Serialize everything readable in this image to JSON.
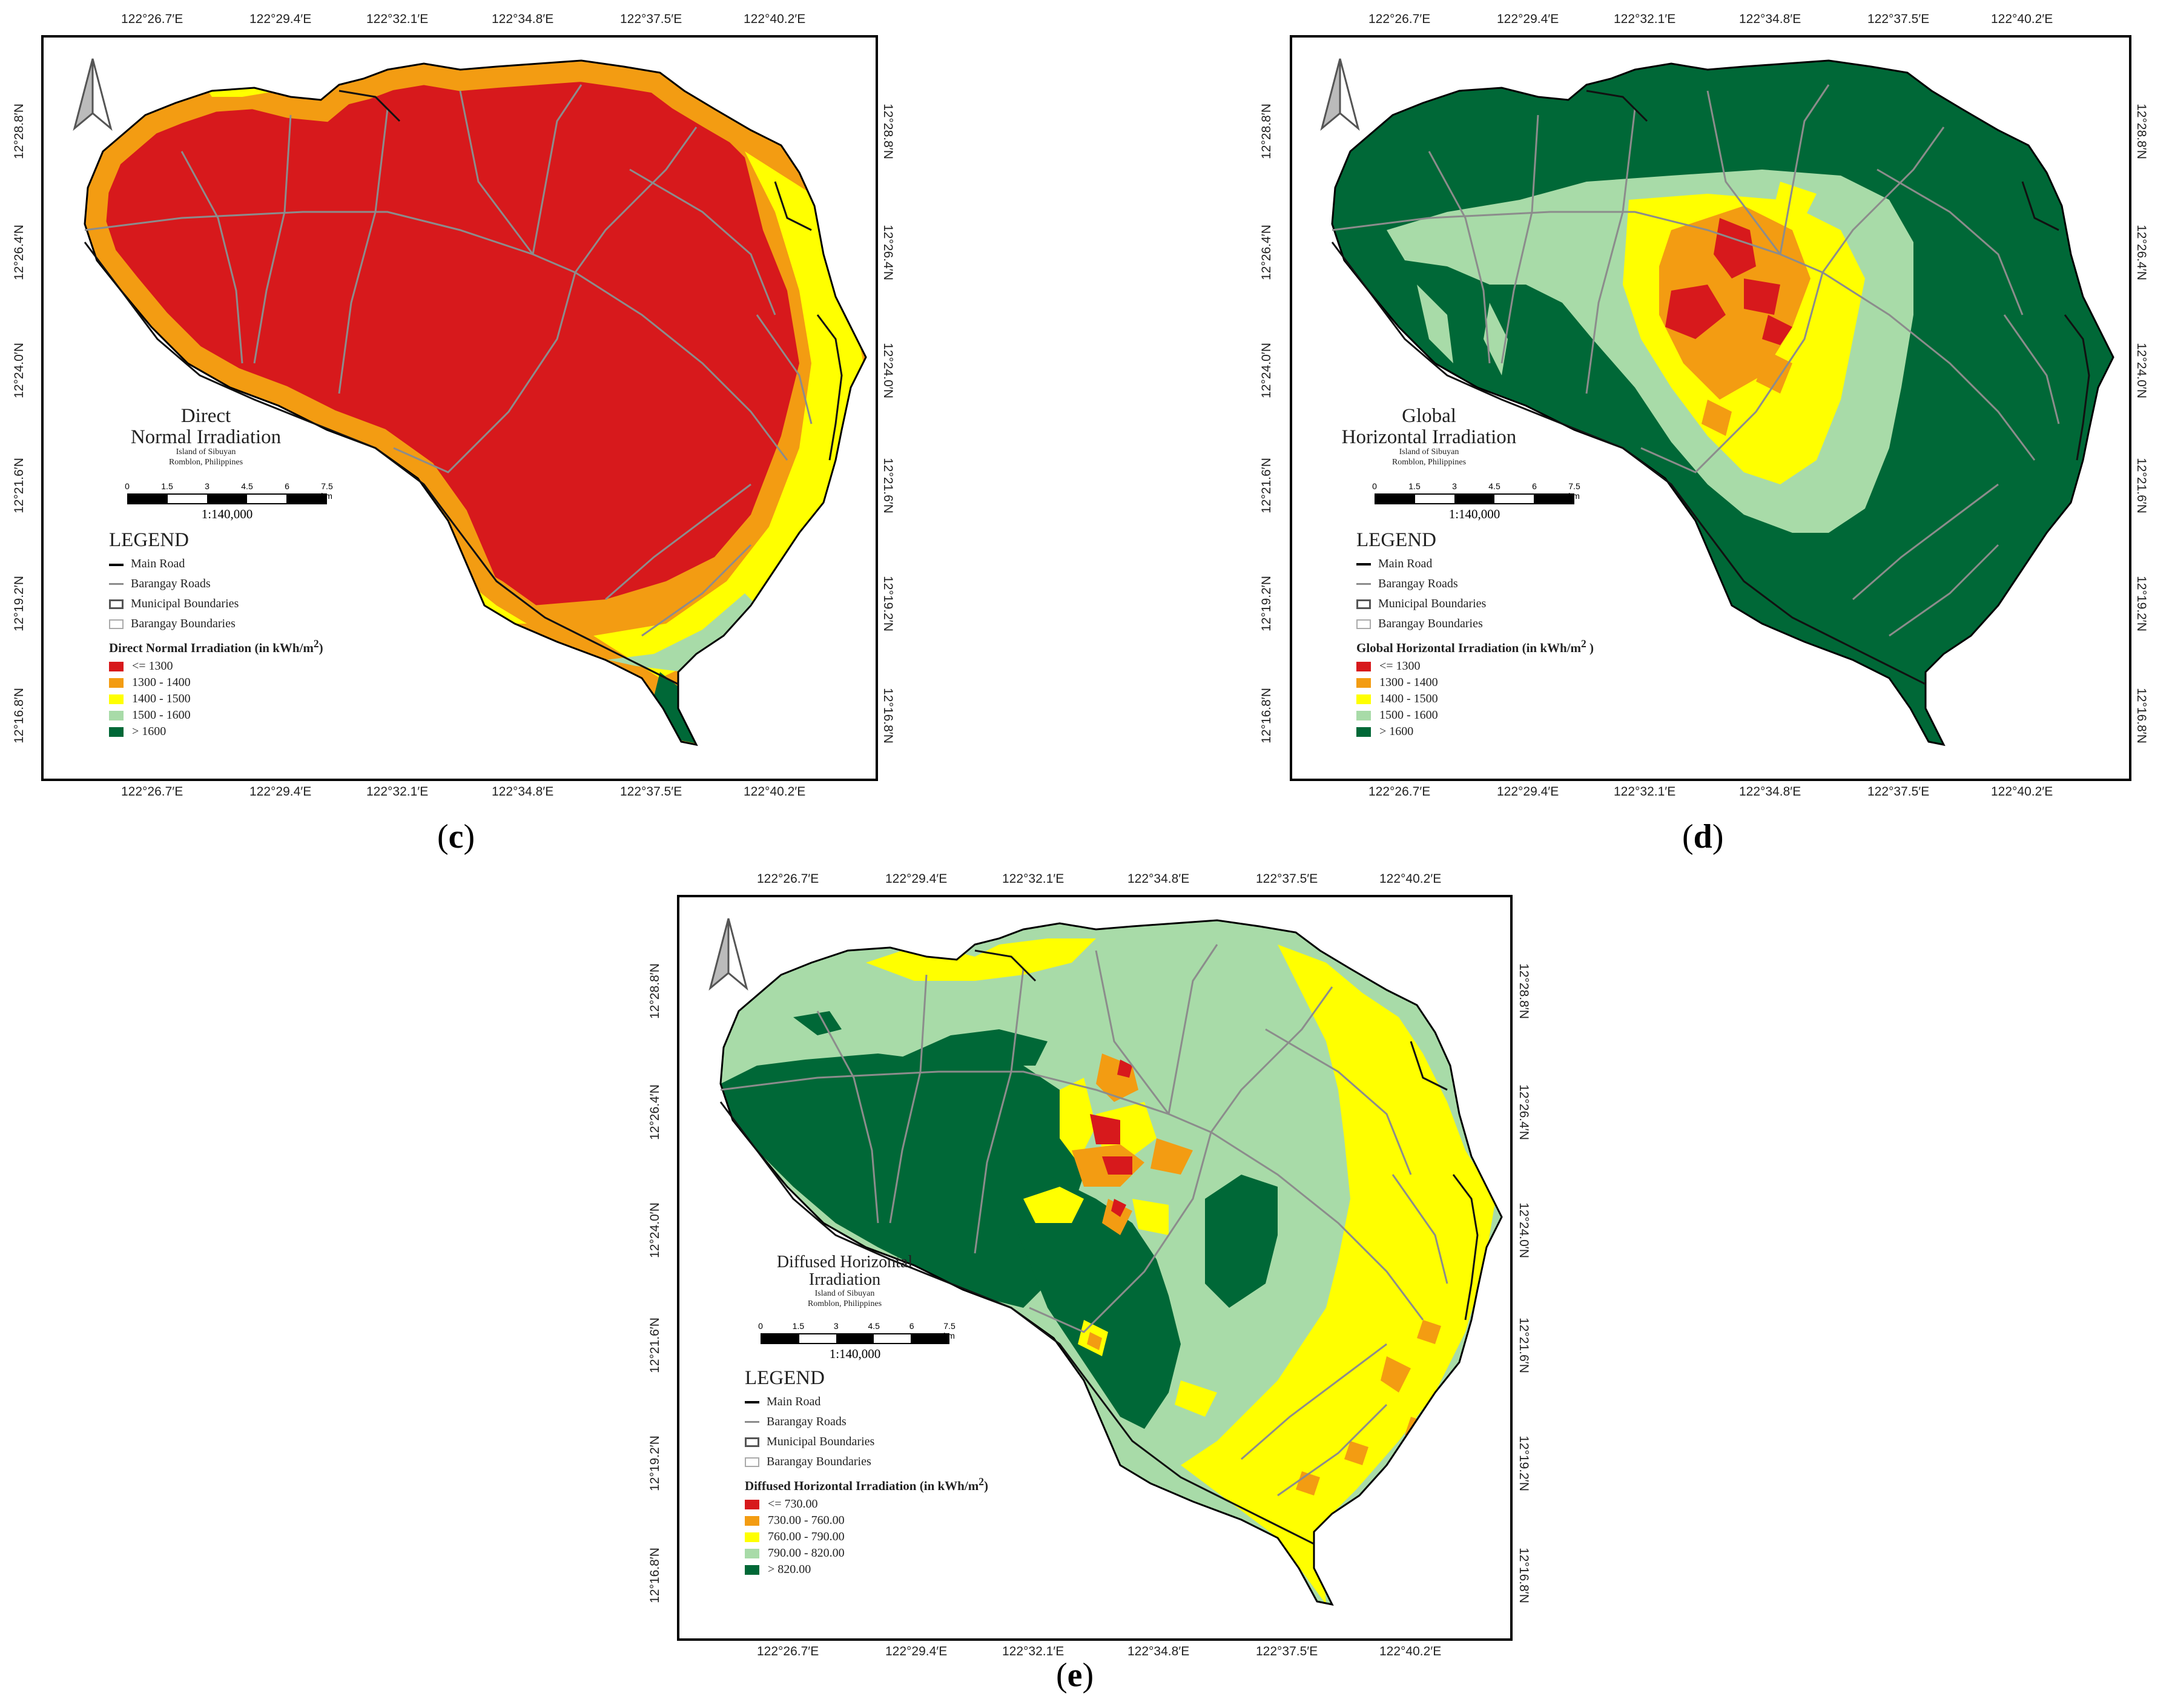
{
  "top_lon_ticks": [
    "122°26.7′E",
    "122°29.4′E",
    "122°32.1′E",
    "122°34.8′E",
    "122°37.5′E",
    "122°40.2′E"
  ],
  "lat_ticks": [
    "12°28.8′N",
    "12°26.4′N",
    "12°24.0′N",
    "12°21.6′N",
    "12°19.2′N",
    "12°16.8′N"
  ],
  "common": {
    "island": "Island of Sibuyan",
    "province": "Romblon, Philippines",
    "scale_numbers": [
      "0",
      "1.5",
      "3",
      "4.5",
      "6",
      "7.5 km"
    ],
    "ratio": "1:140,000",
    "legend_title": "LEGEND",
    "legend_items": [
      "Main Road",
      "Barangay Roads",
      "Municipal Boundaries",
      "Barangay Boundaries"
    ]
  },
  "panels": [
    {
      "id": "c",
      "caption": "c",
      "title_line1": "Direct",
      "title_line2": "Normal Irradiation",
      "class_title": "Direct Normal Irradiation (in kWh/m",
      "class_title_end": ")",
      "classes": [
        "<= 1300",
        "1300 - 1400",
        "1400 - 1500",
        "1500 - 1600",
        "> 1600"
      ],
      "colors": [
        "#d7191c",
        "#f39c12",
        "#ffff00",
        "#a8dba8",
        "#006837"
      ]
    },
    {
      "id": "d",
      "caption": "d",
      "title_line1": "Global",
      "title_line2": "Horizontal Irradiation",
      "class_title": "Global Horizontal Irradiation (in kWh/m",
      "class_title_end": " )",
      "classes": [
        "<= 1300",
        "1300 - 1400",
        "1400 - 1500",
        "1500 - 1600",
        "> 1600"
      ],
      "colors": [
        "#d7191c",
        "#f39c12",
        "#ffff00",
        "#a8dba8",
        "#006837"
      ]
    },
    {
      "id": "e",
      "caption": "e",
      "title_line1": "Diffused Horizontal",
      "title_line2": "Irradiation",
      "class_title": "Diffused Horizontal Irradiation (in kWh/m",
      "class_title_end": ")",
      "classes": [
        "<= 730.00",
        "730.00 - 760.00",
        "760.00 - 790.00",
        "790.00 - 820.00",
        "> 820.00"
      ],
      "colors": [
        "#d7191c",
        "#f39c12",
        "#ffff00",
        "#a8dba8",
        "#006837"
      ]
    }
  ]
}
